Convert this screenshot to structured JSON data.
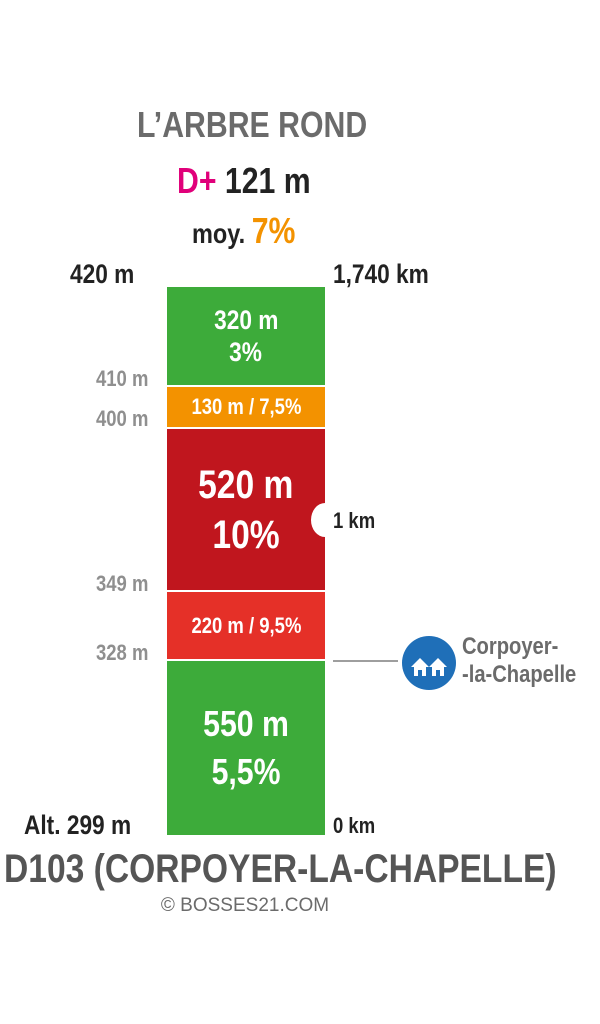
{
  "climb": {
    "title": "L’ARBRE ROND",
    "dplus_prefix": "D+",
    "dplus_value": "121 m",
    "avg_prefix": "moy.",
    "avg_value": "7%"
  },
  "top": {
    "altitude": "420 m",
    "distance": "1,740 km"
  },
  "altitude_markers": [
    {
      "label": "410 m"
    },
    {
      "label": "400 m"
    },
    {
      "label": "349 m"
    },
    {
      "label": "328 m"
    }
  ],
  "segments": [
    {
      "line1": "320 m",
      "line2": "3%",
      "color": "#3dab3a"
    },
    {
      "line1": "130 m / 7,5%",
      "line2": "",
      "color": "#f39200"
    },
    {
      "line1": "520 m",
      "line2": "10%",
      "color": "#c0161e"
    },
    {
      "line1": "220 m / 9,5%",
      "line2": "",
      "color": "#e53028"
    },
    {
      "line1": "550 m",
      "line2": "5,5%",
      "color": "#3dab3a"
    }
  ],
  "km_marker": "1 km",
  "village": {
    "name_line1": "Corpoyer-",
    "name_line2": "-la-Chapelle",
    "icon": "houses-icon",
    "color": "#1f6fb8"
  },
  "bottom": {
    "altitude": "Alt. 299 m",
    "distance": "0 km"
  },
  "road": "D103 (CORPOYER-LA-CHAPELLE)",
  "copyright": "© BOSSES21.COM"
}
